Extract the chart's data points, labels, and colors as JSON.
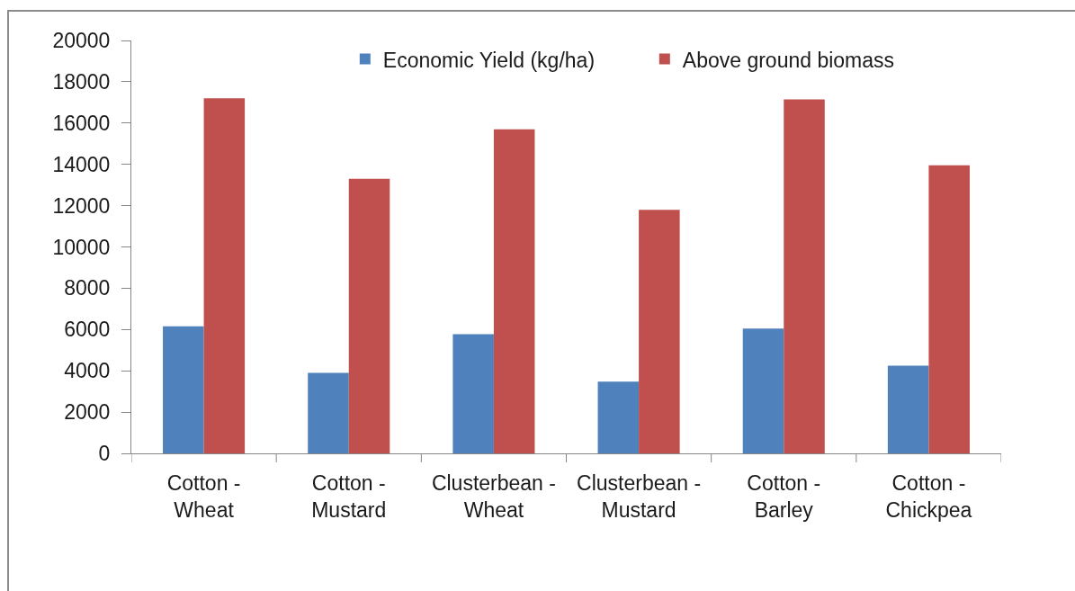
{
  "chart_data": {
    "type": "bar",
    "categories": [
      "Cotton - Wheat",
      "Cotton - Mustard",
      "Clusterbean - Wheat",
      "Clusterbean - Mustard",
      "Cotton - Barley",
      "Cotton - Chickpea"
    ],
    "series": [
      {
        "name": "Economic Yield (kg/ha)",
        "color": "#4f81bd",
        "values": [
          6150,
          3900,
          5770,
          3480,
          6050,
          4250
        ]
      },
      {
        "name": "Above ground biomass",
        "color": "#c0504d",
        "values": [
          17200,
          13300,
          15700,
          11800,
          17150,
          13950
        ]
      }
    ],
    "ylim": [
      0,
      20000
    ],
    "yticks": [
      0,
      2000,
      4000,
      6000,
      8000,
      10000,
      12000,
      14000,
      16000,
      18000,
      20000
    ],
    "grid": false,
    "legend": "top"
  }
}
